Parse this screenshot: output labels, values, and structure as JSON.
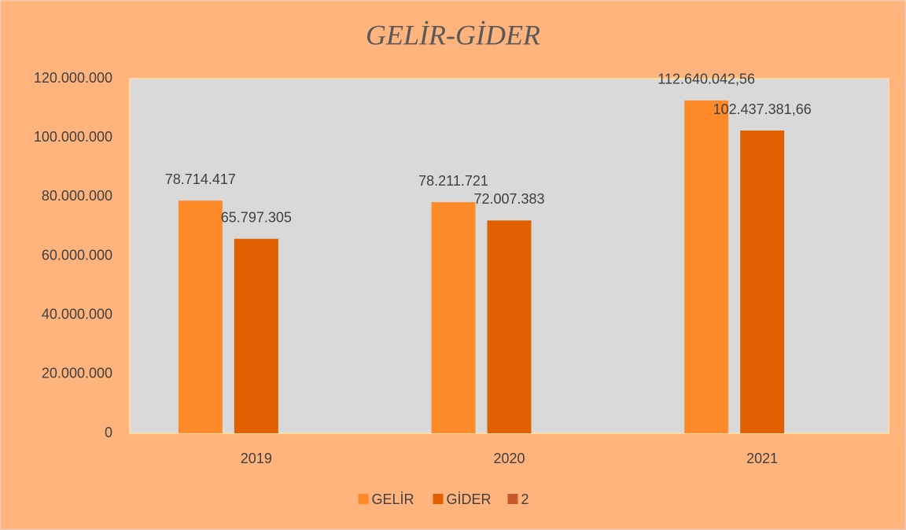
{
  "chart_data": {
    "type": "bar",
    "title": "GELİR-GİDER",
    "categories": [
      "2019",
      "2020",
      "2021"
    ],
    "series": [
      {
        "name": "GELİR",
        "color": "#ff8a2a",
        "values": [
          78714417,
          78211721,
          112640042.56
        ],
        "value_labels": [
          "78.714.417",
          "78.211.721",
          "112.640.042,56"
        ]
      },
      {
        "name": "GİDER",
        "color": "#e06000",
        "values": [
          65797305,
          72007383,
          102437381.66
        ],
        "value_labels": [
          "65.797.305",
          "72.007.383",
          "102.437.381,66"
        ]
      },
      {
        "name": "2",
        "color": "#c55a28",
        "values": [
          null,
          null,
          null
        ]
      }
    ],
    "ylim": [
      0,
      120000000
    ],
    "yticks": [
      0,
      {
        "value": 20000000,
        "label": "20.000.000"
      },
      {
        "value": 40000000,
        "label": "40.000.000"
      },
      {
        "value": 60000000,
        "label": "60.000.000"
      },
      {
        "value": 80000000,
        "label": "80.000.000"
      },
      {
        "value": 100000000,
        "label": "100.000.000"
      },
      {
        "value": 120000000,
        "label": "120.000.000"
      }
    ],
    "legend": "bottom"
  }
}
